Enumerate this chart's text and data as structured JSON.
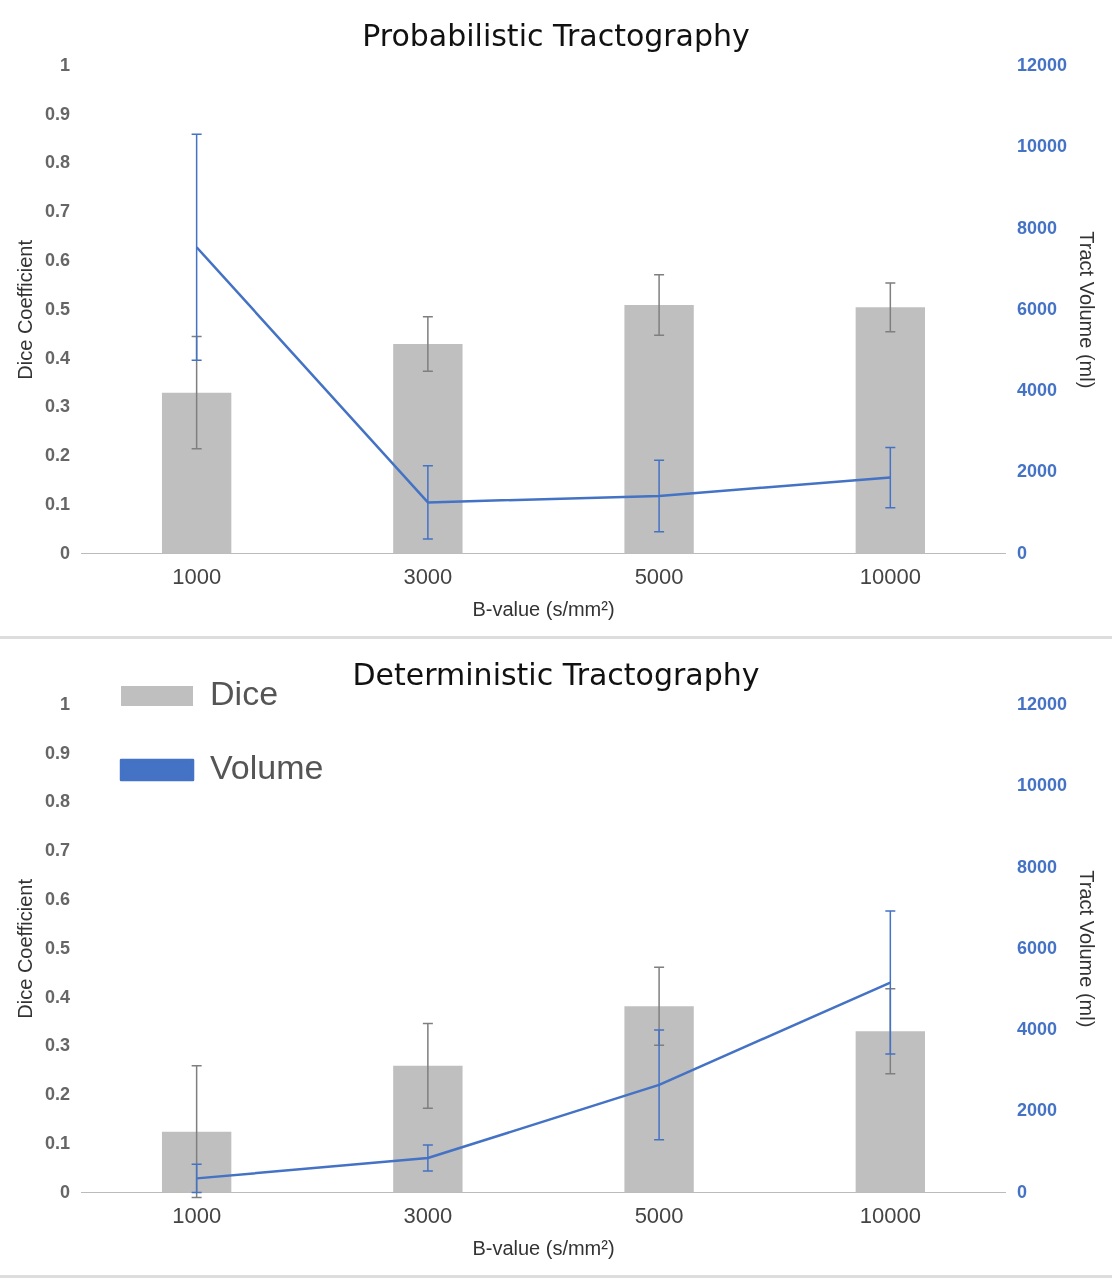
{
  "chart_data": [
    {
      "type": "bar",
      "title": "Probabilistic Tractography",
      "xlabel": "B-value (s/mm²)",
      "ylabel": "Dice Coefficient",
      "y2label": "Tract Volume (ml)",
      "categories": [
        "1000",
        "3000",
        "5000",
        "10000"
      ],
      "series": [
        {
          "color": "#bfbfbf",
          "values": [
            0.33,
            0.43,
            0.51,
            0.505
          ],
          "errors": [
            0.115,
            0.056,
            0.062,
            0.05
          ]
        },
        {
          "type": "line",
          "axis": "y2",
          "color": "#4472c4",
          "values": [
            7540,
            1260,
            1420,
            1870
          ],
          "errors": [
            2780,
            900,
            880,
            740
          ]
        }
      ],
      "ylim": [
        0,
        1
      ],
      "yticks": [
        0,
        0.1,
        0.2,
        0.3,
        0.4,
        0.5,
        0.6,
        0.7,
        0.8,
        0.9,
        1
      ],
      "y2lim": [
        0,
        12000
      ],
      "y2ticks": [
        0,
        2000,
        4000,
        6000,
        8000,
        10000,
        12000
      ],
      "grid": false,
      "legend": false
    },
    {
      "type": "bar",
      "title": "Deterministic Tractography",
      "xlabel": "B-value (s/mm²)",
      "ylabel": "Dice Coefficient",
      "y2label": "Tract Volume (ml)",
      "categories": [
        "1000",
        "3000",
        "5000",
        "10000"
      ],
      "series": [
        {
          "name": "Dice",
          "color": "#bfbfbf",
          "values": [
            0.125,
            0.26,
            0.382,
            0.331
          ],
          "errors": [
            0.135,
            0.087,
            0.08,
            0.087
          ]
        },
        {
          "type": "line",
          "axis": "y2",
          "name": "Volume",
          "color": "#4472c4",
          "values": [
            350,
            850,
            2650,
            5170
          ],
          "errors": [
            350,
            320,
            1350,
            1760
          ]
        }
      ],
      "ylim": [
        0,
        1
      ],
      "yticks": [
        0,
        0.1,
        0.2,
        0.3,
        0.4,
        0.5,
        0.6,
        0.7,
        0.8,
        0.9,
        1
      ],
      "y2lim": [
        0,
        12000
      ],
      "y2ticks": [
        0,
        2000,
        4000,
        6000,
        8000,
        10000,
        12000
      ],
      "grid": false,
      "legend": "top left"
    }
  ]
}
